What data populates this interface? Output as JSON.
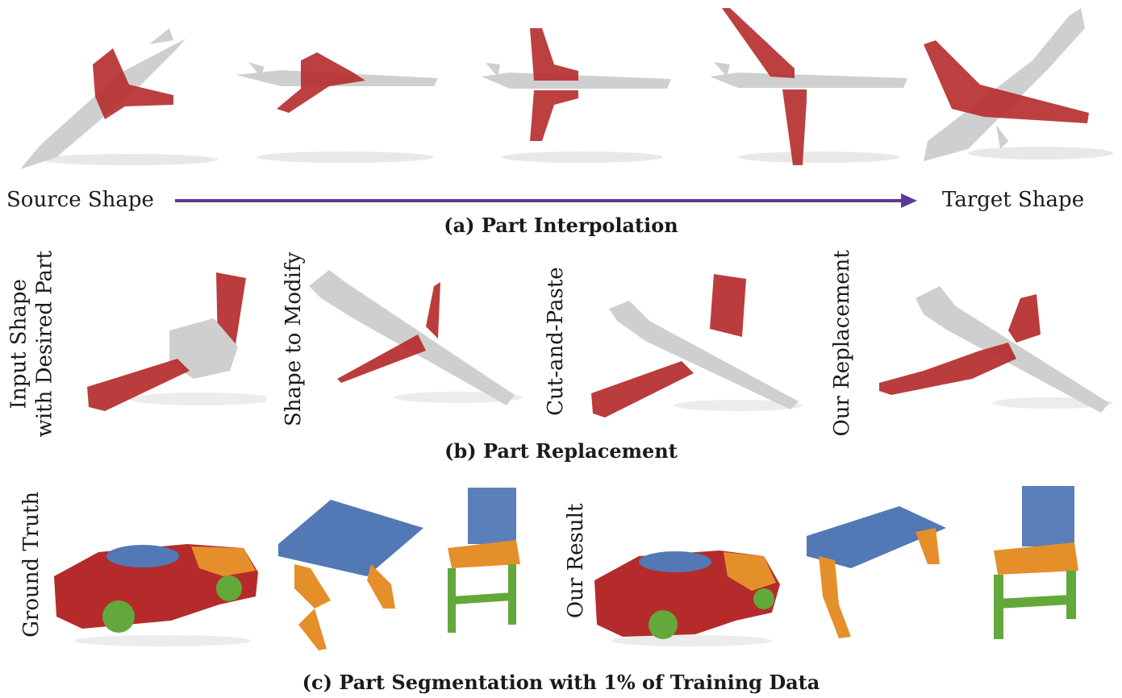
{
  "colors": {
    "gray": "#cfcfcf",
    "red": "#b52b2b",
    "blue": "#5279b5",
    "orange": "#e58f2b",
    "green": "#62a83a",
    "arrow": "#5b3a9b"
  },
  "panel_a": {
    "source_label": "Source Shape",
    "target_label": "Target Shape",
    "caption": "(a) Part Interpolation"
  },
  "panel_b": {
    "labels": [
      "Input Shape\nwith Desired Part",
      "Shape to Modify",
      "Cut-and-Paste",
      "Our Replacement"
    ],
    "caption": "(b) Part Replacement"
  },
  "panel_c": {
    "labels": [
      "Ground Truth",
      "Our Result"
    ],
    "caption": "(c) Part Segmentation with 1% of Training Data"
  }
}
